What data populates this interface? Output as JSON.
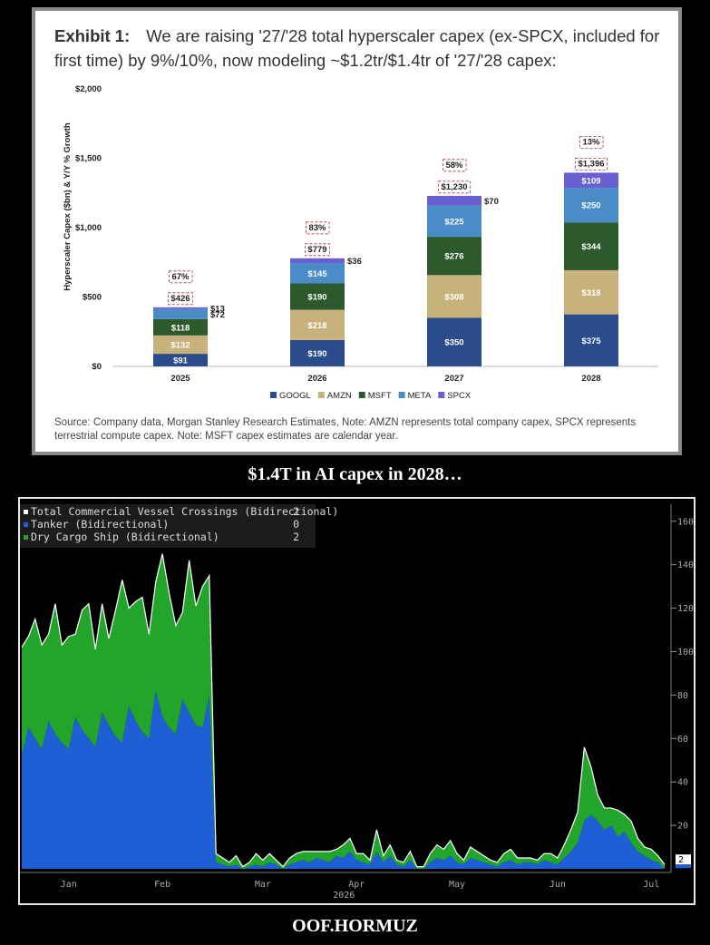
{
  "chart_data": [
    {
      "type": "bar",
      "stacked": true,
      "title_lead": "Exhibit 1:",
      "title": "We are raising '27/'28 total hyperscaler capex (ex-SPCX, included for first time) by 9%/10%, now modeling ~$1.2tr/$1.4tr of '27/'28 capex:",
      "y_label": "Hyperscaler Capex ($bn) & Y/Y % Growth",
      "categories": [
        "2025",
        "2026",
        "2027",
        "2028"
      ],
      "series": [
        {
          "name": "GOOGL",
          "color": "#2b4c8c",
          "values": [
            91,
            190,
            350,
            375
          ],
          "value_labels": [
            "$91",
            "$190",
            "$350",
            "$375"
          ]
        },
        {
          "name": "AMZN",
          "color": "#c8b27c",
          "values": [
            132,
            218,
            308,
            318
          ],
          "value_labels": [
            "$132",
            "$218",
            "$308",
            "$318"
          ]
        },
        {
          "name": "MSFT",
          "color": "#2d5a2d",
          "values": [
            118,
            190,
            276,
            344
          ],
          "value_labels": [
            "$118",
            "$190",
            "$276",
            "$344"
          ]
        },
        {
          "name": "META",
          "color": "#4a8cc8",
          "values": [
            72,
            145,
            225,
            250
          ],
          "value_labels": [
            "$72",
            "$145",
            "$225",
            "$250"
          ]
        },
        {
          "name": "SPCX",
          "color": "#6a5fd2",
          "values": [
            13,
            36,
            70,
            109
          ],
          "value_labels": [
            "$13",
            "$36",
            "$70",
            "$109"
          ]
        }
      ],
      "totals": [
        426,
        779,
        1230,
        1396
      ],
      "total_labels": [
        "$426",
        "$779",
        "$1,230",
        "$1,396"
      ],
      "growth": [
        67,
        83,
        58,
        13
      ],
      "growth_labels": [
        "67%",
        "83%",
        "58%",
        "13%"
      ],
      "ylim": [
        0,
        2000
      ],
      "yticks": [
        {
          "value": 0,
          "label": "$0"
        },
        {
          "value": 500,
          "label": "$500"
        },
        {
          "value": 1000,
          "label": "$1,000"
        },
        {
          "value": 1500,
          "label": "$1,500"
        },
        {
          "value": 2000,
          "label": "$2,000"
        }
      ],
      "source": "Source: Company data, Morgan Stanley Research Estimates, Note: AMZN represents total company capex, SPCX represents terrestrial compute capex. Note: MSFT capex estimates are calendar year."
    },
    {
      "type": "area",
      "stacked": true,
      "categories": [
        null,
        null,
        null,
        null,
        null,
        null,
        null,
        "Jan",
        null,
        null,
        null,
        null,
        null,
        null,
        null,
        null,
        null,
        null,
        null,
        null,
        null,
        "Feb",
        null,
        null,
        null,
        null,
        null,
        null,
        null,
        null,
        null,
        null,
        null,
        null,
        null,
        null,
        "Mar",
        null,
        null,
        null,
        null,
        null,
        null,
        null,
        null,
        null,
        null,
        null,
        null,
        null,
        "Apr",
        null,
        null,
        null,
        null,
        null,
        null,
        null,
        null,
        null,
        null,
        null,
        null,
        null,
        null,
        "May",
        null,
        null,
        null,
        null,
        null,
        null,
        null,
        null,
        null,
        null,
        null,
        null,
        null,
        null,
        "Jun",
        null,
        null,
        null,
        null,
        null,
        null,
        null,
        null,
        null,
        null,
        null,
        null,
        null,
        "Jul",
        null,
        null
      ],
      "x_label": "2026",
      "total": {
        "name": "Total Commercial Vessel Crossings (Bidirectional)",
        "color": "#ffffff",
        "last": 2
      },
      "series": [
        {
          "name": "Tanker (Bidirectional)",
          "color": "#1f5fd6",
          "last": 0,
          "values": [
            52,
            65,
            60,
            55,
            68,
            62,
            58,
            55,
            70,
            64,
            60,
            56,
            72,
            66,
            61,
            58,
            75,
            68,
            63,
            60,
            82,
            70,
            65,
            62,
            78,
            72,
            66,
            65,
            80,
            3,
            2,
            1,
            2,
            0,
            1,
            2,
            1,
            3,
            2,
            0,
            2,
            3,
            4,
            3,
            5,
            4,
            3,
            6,
            5,
            8,
            4,
            3,
            2,
            8,
            3,
            6,
            2,
            1,
            4,
            0,
            0,
            3,
            5,
            4,
            6,
            3,
            2,
            5,
            4,
            3,
            2,
            1,
            3,
            4,
            2,
            3,
            3,
            2,
            4,
            3,
            2,
            5,
            8,
            12,
            22,
            25,
            22,
            18,
            20,
            15,
            17,
            12,
            8,
            6,
            4,
            3,
            0
          ]
        },
        {
          "name": "Dry Cargo Ship (Bidirectional)",
          "color": "#22a52a",
          "last": 2,
          "values": [
            50,
            42,
            55,
            48,
            40,
            60,
            45,
            52,
            38,
            55,
            62,
            45,
            50,
            40,
            58,
            75,
            45,
            55,
            62,
            48,
            50,
            75,
            62,
            50,
            40,
            70,
            55,
            65,
            55,
            4,
            3,
            2,
            4,
            1,
            2,
            5,
            3,
            4,
            2,
            1,
            3,
            4,
            4,
            5,
            3,
            4,
            5,
            3,
            6,
            6,
            3,
            4,
            2,
            10,
            3,
            5,
            2,
            2,
            4,
            1,
            1,
            4,
            6,
            5,
            7,
            4,
            2,
            5,
            4,
            3,
            2,
            2,
            4,
            5,
            3,
            2,
            2,
            2,
            3,
            4,
            3,
            6,
            10,
            14,
            34,
            22,
            12,
            10,
            8,
            12,
            8,
            10,
            6,
            4,
            5,
            3,
            2
          ]
        }
      ],
      "ylim": [
        0,
        167
      ],
      "yticks": [
        20,
        40,
        60,
        80,
        100,
        120,
        140,
        160
      ]
    }
  ],
  "captions": [
    "$1.4T in AI capex in 2028…",
    "OOF.HORMUZ"
  ]
}
